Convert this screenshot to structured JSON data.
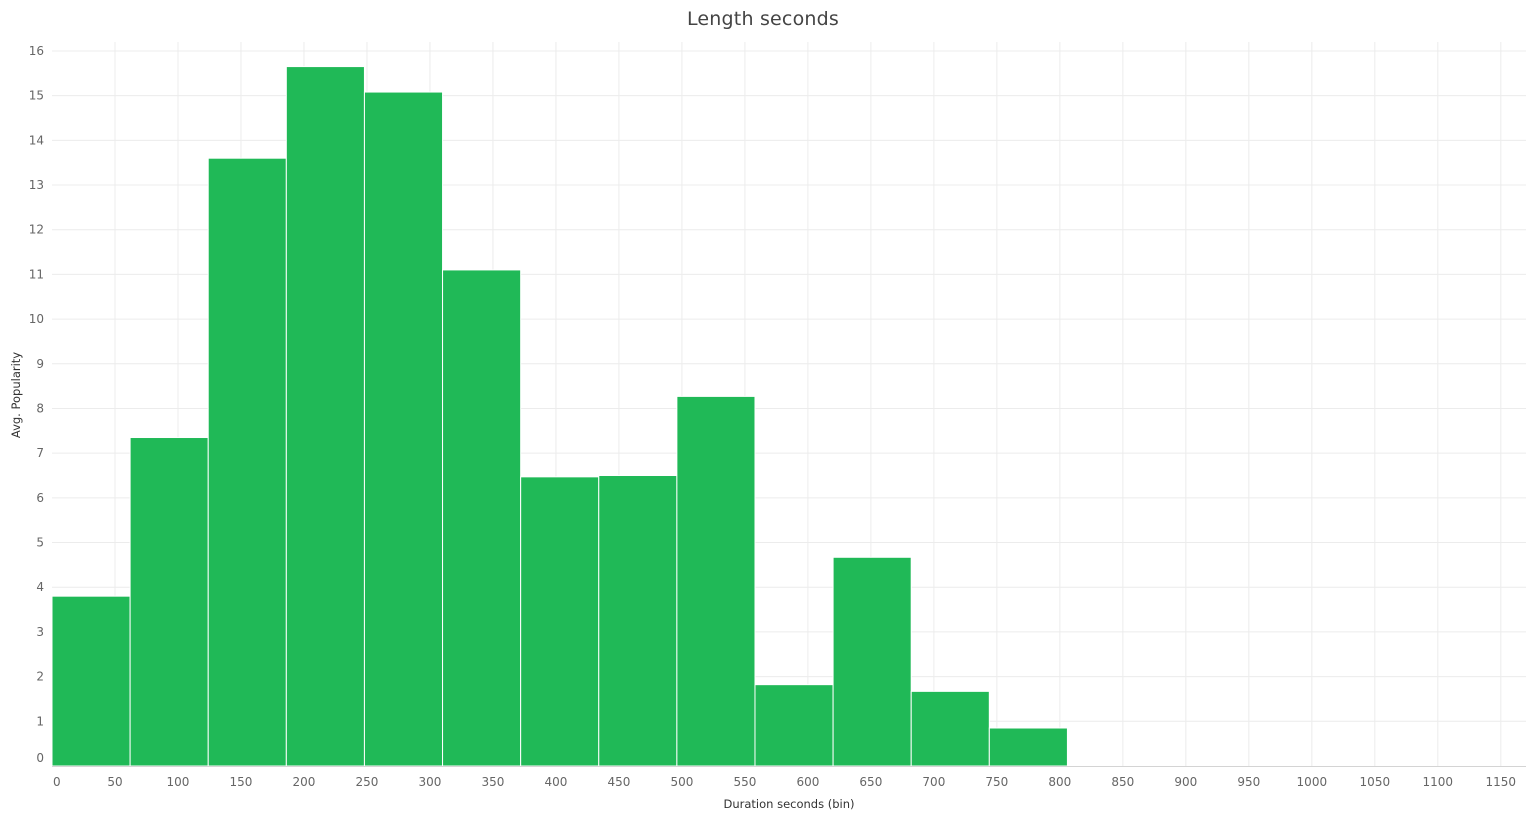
{
  "chart_data": {
    "type": "bar",
    "title": "Length seconds",
    "xlabel": "Duration seconds (bin)",
    "ylabel": "Avg. Popularity",
    "bin_width": 62,
    "bins": [
      {
        "start": 0,
        "value": 3.8
      },
      {
        "start": 62,
        "value": 7.35
      },
      {
        "start": 124,
        "value": 13.6
      },
      {
        "start": 186,
        "value": 15.65
      },
      {
        "start": 248,
        "value": 15.08
      },
      {
        "start": 310,
        "value": 11.1
      },
      {
        "start": 372,
        "value": 6.47
      },
      {
        "start": 434,
        "value": 6.5
      },
      {
        "start": 496,
        "value": 8.27
      },
      {
        "start": 558,
        "value": 1.82
      },
      {
        "start": 620,
        "value": 4.67
      },
      {
        "start": 682,
        "value": 1.67
      },
      {
        "start": 744,
        "value": 0.85
      }
    ],
    "x_ticks": [
      "0",
      "50",
      "100",
      "150",
      "200",
      "250",
      "300",
      "350",
      "400",
      "450",
      "500",
      "550",
      "600",
      "650",
      "700",
      "750",
      "800",
      "850",
      "900",
      "950",
      "1000",
      "1050",
      "1100",
      "1150"
    ],
    "y_ticks": [
      "0",
      "1",
      "2",
      "3",
      "4",
      "5",
      "6",
      "7",
      "8",
      "9",
      "10",
      "11",
      "12",
      "13",
      "14",
      "15",
      "16"
    ],
    "xlim": [
      0,
      1170
    ],
    "ylim": [
      0,
      16.2
    ],
    "bar_color": "#20b957",
    "grid": true,
    "legend": "none"
  }
}
